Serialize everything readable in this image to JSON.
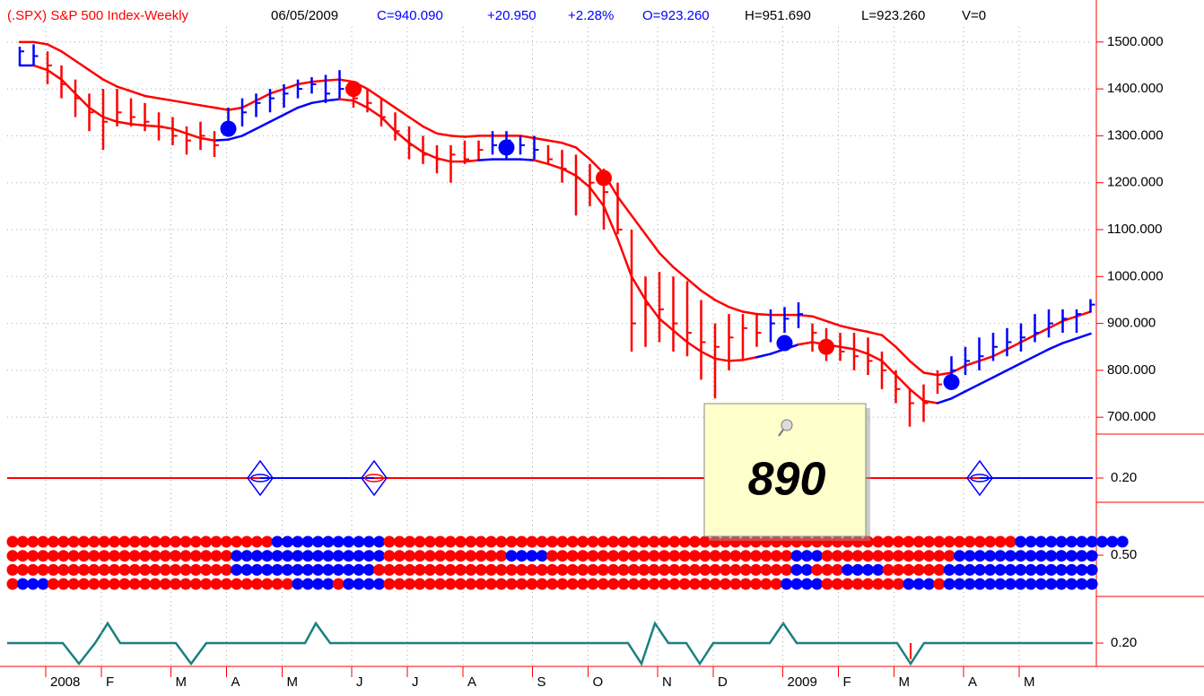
{
  "header": {
    "symbol": "(.SPX) S&P 500 Index-Weekly",
    "date": "06/05/2009",
    "close": "C=940.090",
    "change": "+20.950",
    "change_pct": "+2.28%",
    "open": "O=923.260",
    "high": "H=951.690",
    "low": "L=923.260",
    "volume": "V=0"
  },
  "note": "890",
  "chart_data": {
    "type": "ohlc",
    "categories": [
      null,
      null,
      "2008",
      null,
      null,
      null,
      "F",
      null,
      null,
      null,
      null,
      "M",
      null,
      null,
      null,
      "A",
      null,
      null,
      null,
      "M",
      null,
      null,
      null,
      null,
      "J",
      null,
      null,
      null,
      "J",
      null,
      null,
      null,
      "A",
      null,
      null,
      null,
      null,
      "S",
      null,
      null,
      null,
      "O",
      null,
      null,
      null,
      null,
      "N",
      null,
      null,
      null,
      "D",
      null,
      null,
      null,
      null,
      "2009",
      null,
      null,
      null,
      "F",
      null,
      null,
      null,
      "M",
      null,
      null,
      null,
      null,
      "A",
      null,
      null,
      null,
      "M",
      null,
      null,
      null,
      null,
      null
    ],
    "high": [
      1490,
      1495,
      1480,
      1450,
      1420,
      1390,
      1400,
      1400,
      1380,
      1370,
      1350,
      1340,
      1320,
      1330,
      1310,
      1360,
      1380,
      1390,
      1400,
      1410,
      1420,
      1425,
      1430,
      1440,
      1410,
      1400,
      1380,
      1350,
      1320,
      1300,
      1280,
      1280,
      1290,
      1290,
      1310,
      1310,
      1300,
      1300,
      1280,
      1270,
      1260,
      1240,
      1230,
      1200,
      1100,
      1000,
      1010,
      1000,
      990,
      950,
      900,
      920,
      920,
      920,
      930,
      935,
      945,
      900,
      890,
      880,
      880,
      870,
      840,
      800,
      760,
      770,
      800,
      830,
      850,
      870,
      880,
      890,
      900,
      920,
      930,
      930,
      930,
      951.69
    ],
    "low": [
      1450,
      1450,
      1410,
      1380,
      1340,
      1310,
      1270,
      1320,
      1320,
      1310,
      1290,
      1280,
      1260,
      1270,
      1255,
      1300,
      1320,
      1340,
      1350,
      1360,
      1380,
      1390,
      1370,
      1380,
      1360,
      1350,
      1320,
      1290,
      1250,
      1240,
      1220,
      1200,
      1240,
      1250,
      1260,
      1250,
      1260,
      1250,
      1240,
      1200,
      1130,
      1150,
      1100,
      1090,
      840,
      850,
      860,
      840,
      830,
      780,
      740,
      800,
      820,
      850,
      860,
      880,
      890,
      840,
      820,
      820,
      800,
      790,
      760,
      730,
      680,
      690,
      750,
      760,
      790,
      800,
      820,
      830,
      840,
      860,
      870,
      880,
      880,
      923.26
    ],
    "close": [
      1480,
      1470,
      1450,
      1410,
      1380,
      1350,
      1330,
      1350,
      1340,
      1330,
      1320,
      1300,
      1290,
      1300,
      1280,
      1320,
      1350,
      1370,
      1380,
      1390,
      1400,
      1410,
      1390,
      1400,
      1380,
      1370,
      1340,
      1310,
      1280,
      1260,
      1250,
      1260,
      1250,
      1270,
      1280,
      1290,
      1280,
      1270,
      1250,
      1230,
      1210,
      1200,
      1180,
      1100,
      900,
      940,
      930,
      900,
      880,
      860,
      850,
      870,
      890,
      880,
      900,
      910,
      920,
      880,
      860,
      840,
      830,
      820,
      800,
      760,
      730,
      730,
      770,
      800,
      820,
      830,
      850,
      860,
      870,
      880,
      900,
      910,
      920,
      940.09
    ],
    "colors": [
      "b",
      "b",
      "r",
      "r",
      "r",
      "r",
      "r",
      "r",
      "r",
      "r",
      "r",
      "r",
      "r",
      "r",
      "r",
      "b",
      "b",
      "b",
      "b",
      "b",
      "b",
      "b",
      "b",
      "b",
      "r",
      "r",
      "r",
      "r",
      "r",
      "r",
      "r",
      "r",
      "r",
      "r",
      "b",
      "b",
      "b",
      "b",
      "r",
      "r",
      "r",
      "r",
      "r",
      "r",
      "r",
      "r",
      "r",
      "r",
      "r",
      "r",
      "r",
      "r",
      "r",
      "r",
      "b",
      "b",
      "b",
      "r",
      "r",
      "r",
      "r",
      "r",
      "r",
      "r",
      "r",
      "r",
      "r",
      "b",
      "b",
      "b",
      "b",
      "b",
      "b",
      "b",
      "b",
      "b",
      "b",
      "b"
    ],
    "palette": {
      "r": "#ff0000",
      "b": "#0000ff"
    },
    "upper_band": [
      1500,
      1500,
      1495,
      1480,
      1460,
      1440,
      1420,
      1405,
      1395,
      1385,
      1380,
      1375,
      1370,
      1365,
      1360,
      1355,
      1360,
      1375,
      1390,
      1400,
      1410,
      1415,
      1418,
      1420,
      1415,
      1400,
      1380,
      1360,
      1340,
      1320,
      1305,
      1300,
      1298,
      1300,
      1300,
      1300,
      1300,
      1295,
      1290,
      1285,
      1275,
      1250,
      1220,
      1170,
      1130,
      1090,
      1050,
      1020,
      995,
      970,
      950,
      935,
      925,
      920,
      918,
      918,
      918,
      915,
      905,
      895,
      888,
      882,
      875,
      850,
      820,
      795,
      790,
      795,
      810,
      820,
      830,
      845,
      860,
      875,
      890,
      905,
      915,
      925
    ],
    "lower_band": [
      1450,
      1450,
      1440,
      1420,
      1390,
      1360,
      1340,
      1330,
      1325,
      1322,
      1320,
      1315,
      1305,
      1295,
      1290,
      1292,
      1300,
      1315,
      1330,
      1345,
      1360,
      1370,
      1375,
      1378,
      1375,
      1360,
      1340,
      1310,
      1285,
      1265,
      1252,
      1245,
      1245,
      1248,
      1250,
      1250,
      1250,
      1248,
      1240,
      1230,
      1215,
      1190,
      1150,
      1080,
      1000,
      950,
      910,
      885,
      860,
      840,
      825,
      820,
      822,
      828,
      835,
      845,
      855,
      860,
      855,
      850,
      845,
      835,
      820,
      790,
      760,
      735,
      730,
      740,
      755,
      770,
      785,
      800,
      815,
      830,
      845,
      858,
      868,
      878
    ],
    "markers": [
      {
        "color": "#0000ff",
        "x": [
          15,
          35,
          55,
          67
        ],
        "values": [
          1315,
          1275,
          858,
          775
        ]
      },
      {
        "color": "#ff0000",
        "x": [
          24,
          42,
          58
        ],
        "values": [
          1400,
          1210,
          850
        ]
      }
    ],
    "ylim": [
      664,
      1580
    ],
    "yticks": [
      {
        "value": 700,
        "label": "700.000"
      },
      {
        "value": 800,
        "label": "800.000"
      },
      {
        "value": 900,
        "label": "900.000"
      },
      {
        "value": 1000,
        "label": "1000.000"
      },
      {
        "value": 1100,
        "label": "1100.000"
      },
      {
        "value": 1200,
        "label": "1200.000"
      },
      {
        "value": 1300,
        "label": "1300.000"
      },
      {
        "value": 1400,
        "label": "1400.000"
      },
      {
        "value": 1500,
        "label": "1500.000"
      }
    ],
    "grid": true
  },
  "panels": [
    {
      "yticks": [
        {
          "value": 0.2,
          "label": "0.20"
        }
      ]
    },
    {
      "yticks": [
        {
          "value": 0.5,
          "label": "0.50"
        }
      ],
      "dot_rows": [
        "rrrrrrrrrrrrrrrrrrrrrrrrrrbbbbbbbbbbbrrrrrrrrrrrrrrrrrrrrrrrrrrrrrrrrrrrrrrrrrrrrrrrrrrrrrrrrrrrrrrbbbbbbbbbbb",
        "rrrrrrrrrrrrrrrrrrrrrrbbbbbbbbbbbbbbbrrrrrrrrrrrrbbbbrrrrrrrrrrrrrrrrrrrrrrrrbbbrrrrrrrrrrrrrbbbbbbbbbbbbbb",
        "rrrrrrrrrrrrrrrrrrrrrrbbbbbbbbbbbbbbrrrrrrrrrrrrrrrrrrrrrrrrrrrrrrrrrrrrrrrrrbbrrrbbbbrrrrrrbbbbbbbbbbbbbbb",
        "rbbbrrrrrrrrrrrrrrrrrrrrrrrrbbbbrbbbbrrrrrrrrrrrrrrrrrrrrrrrrrrrrrrrrrrrrrrrbbbbrrrrrrrrbbbrbbbbbbbbbbbbbbb"
      ]
    },
    {
      "yticks": [
        {
          "value": 0.2,
          "label": "0.20"
        }
      ]
    }
  ]
}
